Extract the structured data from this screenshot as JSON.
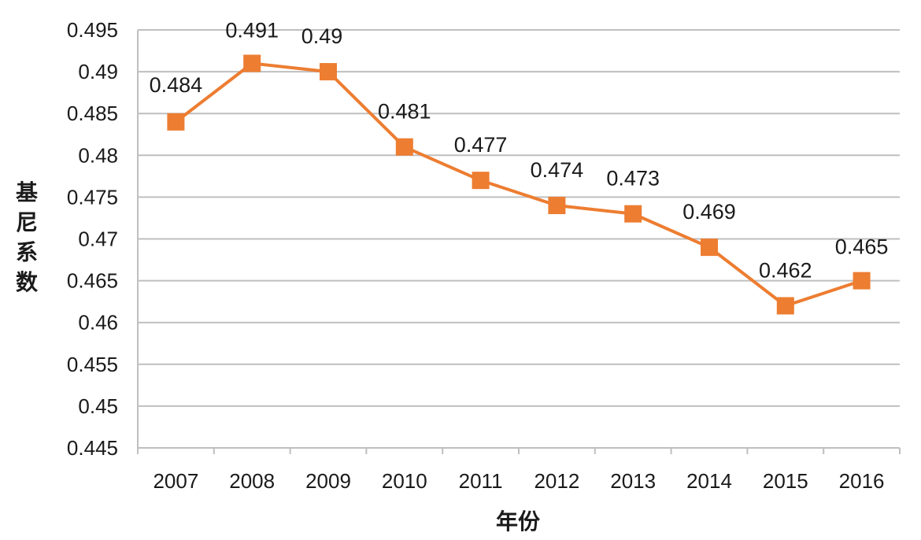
{
  "chart_data": {
    "type": "line",
    "title": "",
    "xlabel": "年份",
    "ylabel": "基尼系数",
    "categories": [
      "2007",
      "2008",
      "2009",
      "2010",
      "2011",
      "2012",
      "2013",
      "2014",
      "2015",
      "2016"
    ],
    "series": [
      {
        "values": [
          0.484,
          0.491,
          0.49,
          0.481,
          0.477,
          0.474,
          0.473,
          0.469,
          0.462,
          0.465
        ],
        "data_labels": [
          "0.484",
          "0.491",
          "0.49",
          "0.481",
          "0.477",
          "0.474",
          "0.473",
          "0.469",
          "0.462",
          "0.465"
        ]
      }
    ],
    "y_ticks": [
      "0.445",
      "0.45",
      "0.455",
      "0.46",
      "0.465",
      "0.47",
      "0.475",
      "0.48",
      "0.485",
      "0.49",
      "0.495"
    ],
    "ylim": [
      0.445,
      0.495
    ],
    "grid": true,
    "legend": "none",
    "marker": "square",
    "colors": {
      "series": "#ED7D31",
      "grid": "#BFBFBF",
      "axis": "#BFBFBF",
      "text": "#1a1a1a"
    }
  }
}
